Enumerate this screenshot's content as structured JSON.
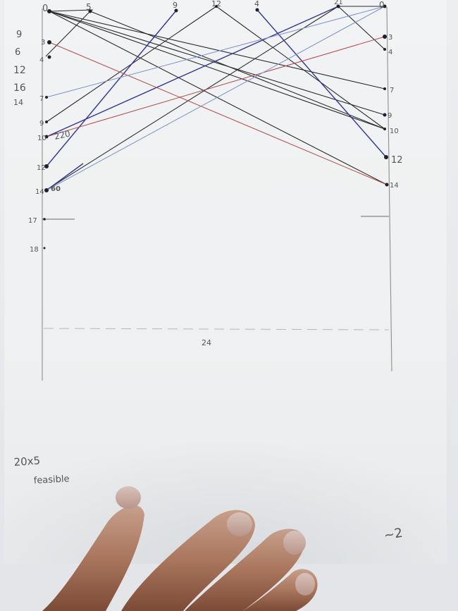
{
  "sheet": {
    "top_left_labels": [
      {
        "text": "0",
        "color": "#333333"
      },
      {
        "text": "5",
        "color": "#333333"
      }
    ],
    "top_labels": [
      {
        "text": "9",
        "color": "#222266"
      },
      {
        "text": "12",
        "color": "#333333"
      },
      {
        "text": "4",
        "color": "#222266"
      },
      {
        "text": "21",
        "color": "#333333"
      },
      {
        "text": "0",
        "color": "#333333"
      }
    ],
    "margin_numbers": [
      "9",
      "6",
      "12",
      "16",
      "14"
    ],
    "left_axis_labels": [
      {
        "text": "3",
        "color": "#222222"
      },
      {
        "text": "4",
        "color": "#222222"
      },
      {
        "text": "7",
        "color": "#222222"
      },
      {
        "text": "9",
        "color": "#222222"
      },
      {
        "text": "10",
        "color": "#222222"
      },
      {
        "text": "12",
        "color": "#222222"
      },
      {
        "text": "14",
        "color": "#222222"
      },
      {
        "text": "17",
        "color": "#333333"
      },
      {
        "text": "18",
        "color": "#333333"
      }
    ],
    "right_axis_labels": [
      {
        "text": "3",
        "color": "#222222"
      },
      {
        "text": "4",
        "color": "#222222"
      },
      {
        "text": "7",
        "color": "#222222"
      },
      {
        "text": "9",
        "color": "#222222"
      },
      {
        "text": "10",
        "color": "#222222"
      },
      {
        "text": "12",
        "color": "#2a2a80"
      },
      {
        "text": "14",
        "color": "#222222"
      }
    ],
    "annotation_220": "220",
    "annotation_blue_14": "60",
    "bottom_axis_label": "24",
    "note_line1": "20x5",
    "note_line2": "feasible",
    "corner_scribble": "~2",
    "line_colors": {
      "black": "#2b2b2b",
      "blue": "#2f3592",
      "red": "#b04a4a",
      "lightblue": "#7a90c8"
    }
  }
}
